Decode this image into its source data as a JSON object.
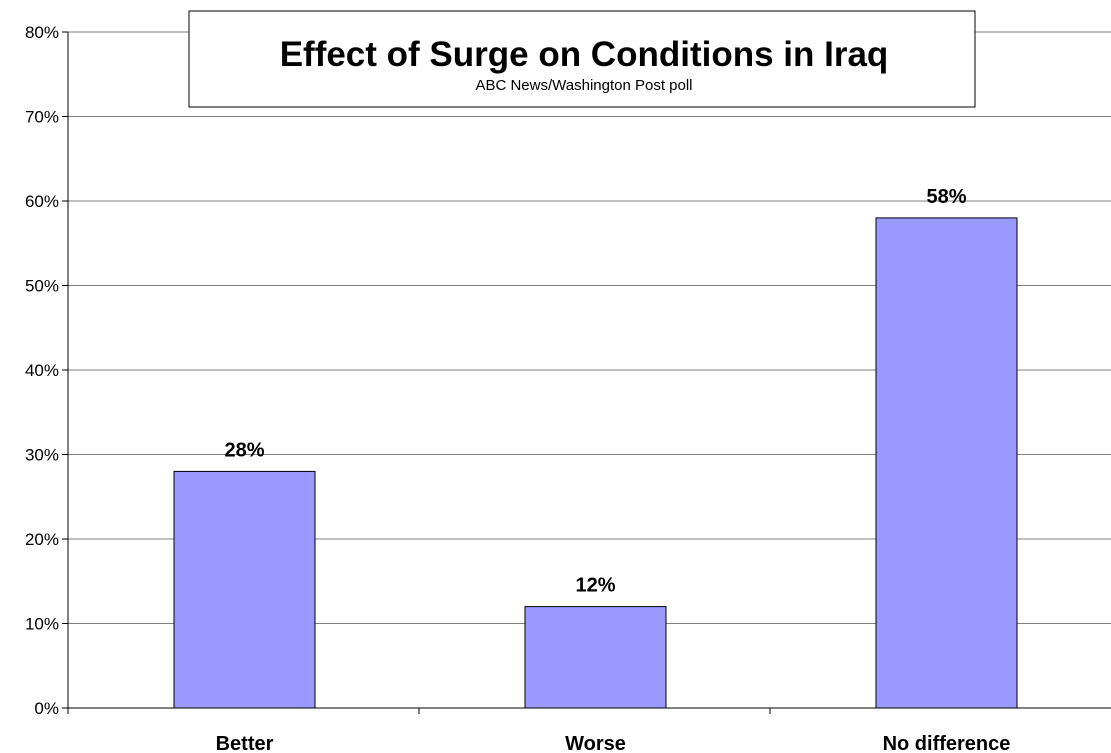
{
  "chart_data": {
    "type": "bar",
    "title": "Effect of Surge on Conditions in Iraq",
    "subtitle": "ABC News/Washington Post poll",
    "categories": [
      "Better",
      "Worse",
      "No difference"
    ],
    "values": [
      28,
      12,
      58
    ],
    "data_labels": [
      "28%",
      "12%",
      "58%"
    ],
    "ylim": [
      0,
      80
    ],
    "yticks": [
      0,
      10,
      20,
      30,
      40,
      50,
      60,
      70,
      80
    ],
    "ytick_labels": [
      "0%",
      "10%",
      "20%",
      "30%",
      "40%",
      "50%",
      "60%",
      "70%",
      "80%"
    ],
    "grid": true,
    "legend": "none",
    "bar_color": "#9999ff",
    "bar_outline": "#000000"
  }
}
